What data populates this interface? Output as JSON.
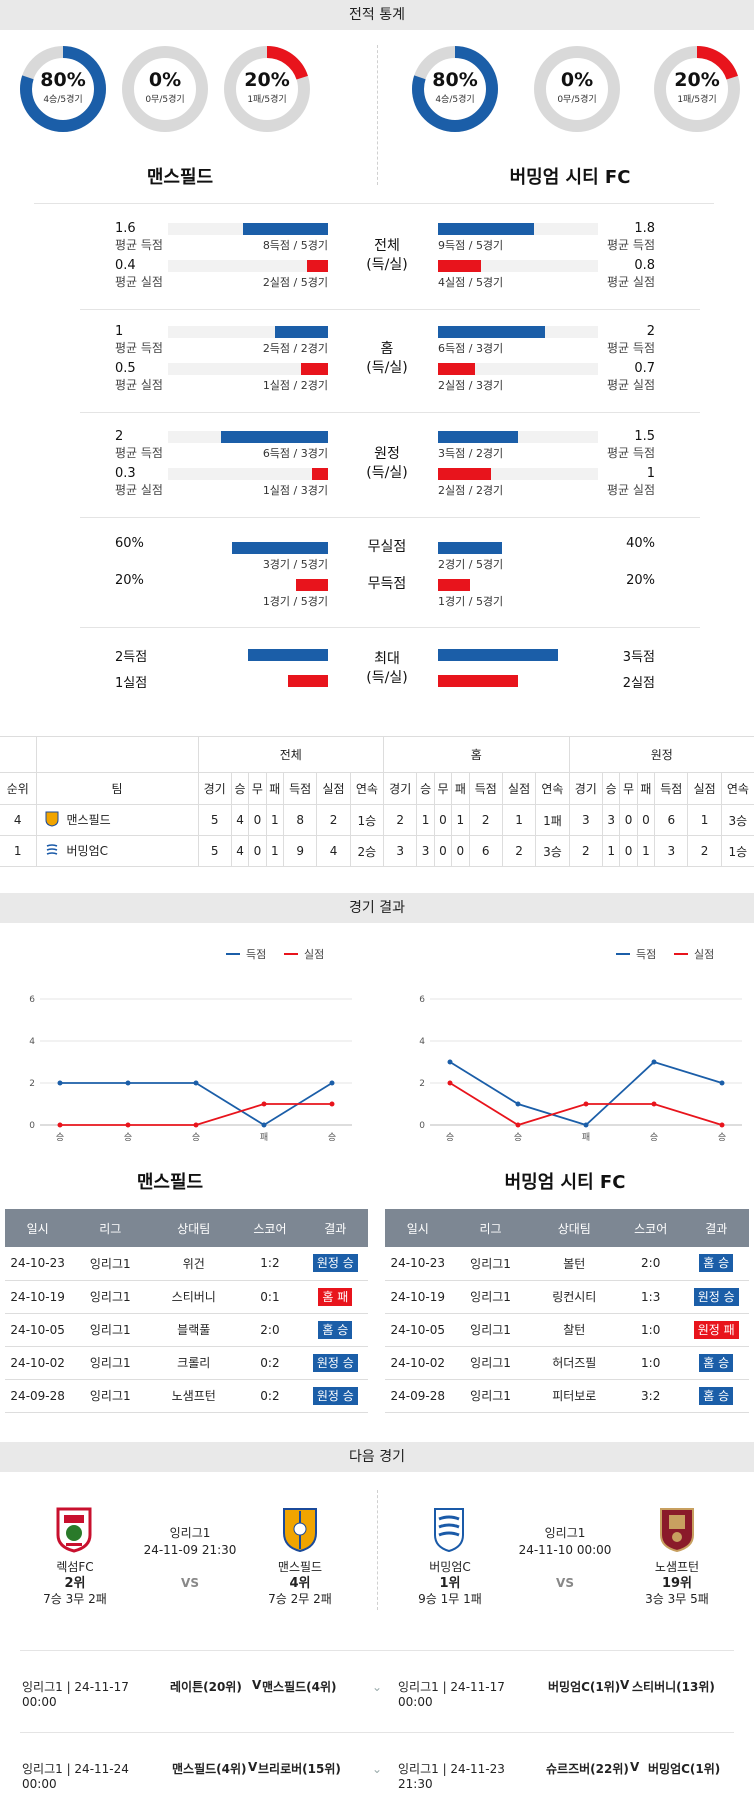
{
  "sec1": "전적 통계",
  "sec2": "경기 결과",
  "sec3": "다음 경기",
  "colors": {
    "blue": "#1b5ea8",
    "red": "#e8141c",
    "gray": "#d9d9d9"
  },
  "home": {
    "name": "맨스필드",
    "rings": [
      {
        "pct": "80%",
        "sub": "4승/5경기",
        "frac": 0.8,
        "color": "#1b5ea8"
      },
      {
        "pct": "0%",
        "sub": "0무/5경기",
        "frac": 0,
        "color": "#1b5ea8"
      },
      {
        "pct": "20%",
        "sub": "1패/5경기",
        "frac": 0.2,
        "color": "#e8141c"
      }
    ]
  },
  "away": {
    "name": "버밍엄 시티 FC",
    "rings": [
      {
        "pct": "80%",
        "sub": "4승/5경기",
        "frac": 0.8,
        "color": "#1b5ea8"
      },
      {
        "pct": "0%",
        "sub": "0무/5경기",
        "frac": 0,
        "color": "#1b5ea8"
      },
      {
        "pct": "20%",
        "sub": "1패/5경기",
        "frac": 0.2,
        "color": "#e8141c"
      }
    ]
  },
  "stats": [
    {
      "cat1": "전체",
      "cat2": "(득/실)",
      "hv1": "1.6",
      "hl1": "평균 득점",
      "hb1": "8득점 / 5경기",
      "hf1": 0.53,
      "hv2": "0.4",
      "hl2": "평균 실점",
      "hb2": "2실점 / 5경기",
      "hf2": 0.13,
      "av1": "1.8",
      "al1": "평균 득점",
      "ab1": "9득점 / 5경기",
      "af1": 0.6,
      "av2": "0.8",
      "al2": "평균 실점",
      "ab2": "4실점 / 5경기",
      "af2": 0.27
    },
    {
      "cat1": "홈",
      "cat2": "(득/실)",
      "hv1": "1",
      "hl1": "평균 득점",
      "hb1": "2득점 / 2경기",
      "hf1": 0.33,
      "hv2": "0.5",
      "hl2": "평균 실점",
      "hb2": "1실점 / 2경기",
      "hf2": 0.17,
      "av1": "2",
      "al1": "평균 득점",
      "ab1": "6득점 / 3경기",
      "af1": 0.67,
      "av2": "0.7",
      "al2": "평균 실점",
      "ab2": "2실점 / 3경기",
      "af2": 0.23
    },
    {
      "cat1": "원정",
      "cat2": "(득/실)",
      "hv1": "2",
      "hl1": "평균 득점",
      "hb1": "6득점 / 3경기",
      "hf1": 0.67,
      "hv2": "0.3",
      "hl2": "평균 실점",
      "hb2": "1실점 / 3경기",
      "hf2": 0.1,
      "av1": "1.5",
      "al1": "평균 득점",
      "ab1": "3득점 / 2경기",
      "af1": 0.5,
      "av2": "1",
      "al2": "평균 실점",
      "ab2": "2실점 / 2경기",
      "af2": 0.33
    }
  ],
  "clean": {
    "cat1": "무실점",
    "cat2": "무득점",
    "hv1": "60%",
    "hb1": "3경기 / 5경기",
    "hf1": 0.6,
    "hv2": "20%",
    "hb2": "1경기 / 5경기",
    "hf2": 0.2,
    "av1": "40%",
    "ab1": "2경기 / 5경기",
    "af1": 0.4,
    "av2": "20%",
    "ab2": "1경기 / 5경기",
    "af2": 0.2
  },
  "max": {
    "cat1": "최대",
    "cat2": "(득/실)",
    "hv1": "2득점",
    "hf1": 0.5,
    "hv2": "1실점",
    "hf2": 0.25,
    "av1": "3득점",
    "af1": 0.75,
    "av2": "2실점",
    "af2": 0.5
  },
  "standings": {
    "groups": [
      "전체",
      "홈",
      "원정"
    ],
    "headers": [
      "순위",
      "팀",
      "경기",
      "승",
      "무",
      "패",
      "득점",
      "실점",
      "연속",
      "경기",
      "승",
      "무",
      "패",
      "득점",
      "실점",
      "연속",
      "경기",
      "승",
      "무",
      "패",
      "득점",
      "실점",
      "연속"
    ],
    "rows": [
      [
        "4",
        "맨스필드",
        "5",
        "4",
        "0",
        "1",
        "8",
        "2",
        "1승",
        "2",
        "1",
        "0",
        "1",
        "2",
        "1",
        "1패",
        "3",
        "3",
        "0",
        "0",
        "6",
        "1",
        "3승"
      ],
      [
        "1",
        "버밍엄C",
        "5",
        "4",
        "0",
        "1",
        "9",
        "4",
        "2승",
        "3",
        "3",
        "0",
        "0",
        "6",
        "2",
        "3승",
        "2",
        "1",
        "0",
        "1",
        "3",
        "2",
        "1승"
      ]
    ]
  },
  "charts": {
    "legend_for": "득점",
    "legend_against": "실점",
    "home": {
      "y_ticks": [
        0,
        2,
        4,
        6
      ],
      "x": [
        "승",
        "승",
        "승",
        "패",
        "승"
      ],
      "for": [
        2,
        2,
        2,
        0,
        2
      ],
      "against": [
        0,
        0,
        0,
        1,
        1
      ]
    },
    "away": {
      "y_ticks": [
        0,
        2,
        4,
        6
      ],
      "x": [
        "승",
        "승",
        "패",
        "승",
        "승"
      ],
      "for": [
        3,
        1,
        0,
        3,
        2
      ],
      "against": [
        2,
        0,
        1,
        1,
        0
      ]
    }
  },
  "results_headers": [
    "일시",
    "리그",
    "상대팀",
    "스코어",
    "결과"
  ],
  "home_results": [
    {
      "date": "24-10-23",
      "league": "잉리그1",
      "opp": "위건",
      "score": "1:2",
      "res": "원정 승",
      "color": "#1b5ea8"
    },
    {
      "date": "24-10-19",
      "league": "잉리그1",
      "opp": "스티버니",
      "score": "0:1",
      "res": "홈 패",
      "color": "#e8141c"
    },
    {
      "date": "24-10-05",
      "league": "잉리그1",
      "opp": "블랙풀",
      "score": "2:0",
      "res": "홈 승",
      "color": "#1b5ea8"
    },
    {
      "date": "24-10-02",
      "league": "잉리그1",
      "opp": "크롤리",
      "score": "0:2",
      "res": "원정 승",
      "color": "#1b5ea8"
    },
    {
      "date": "24-09-28",
      "league": "잉리그1",
      "opp": "노샘프턴",
      "score": "0:2",
      "res": "원정 승",
      "color": "#1b5ea8"
    }
  ],
  "away_results": [
    {
      "date": "24-10-23",
      "league": "잉리그1",
      "opp": "볼턴",
      "score": "2:0",
      "res": "홈 승",
      "color": "#1b5ea8"
    },
    {
      "date": "24-10-19",
      "league": "잉리그1",
      "opp": "링컨시티",
      "score": "1:3",
      "res": "원정 승",
      "color": "#1b5ea8"
    },
    {
      "date": "24-10-05",
      "league": "잉리그1",
      "opp": "찰턴",
      "score": "1:0",
      "res": "원정 패",
      "color": "#e8141c"
    },
    {
      "date": "24-10-02",
      "league": "잉리그1",
      "opp": "허더즈필",
      "score": "1:0",
      "res": "홈 승",
      "color": "#1b5ea8"
    },
    {
      "date": "24-09-28",
      "league": "잉리그1",
      "opp": "피터보로",
      "score": "3:2",
      "res": "홈 승",
      "color": "#1b5ea8"
    }
  ],
  "next": {
    "home": {
      "league": "잉리그1",
      "datetime": "24-11-09 21:30",
      "vs": "VS",
      "t1": {
        "name": "렉섬FC",
        "rank": "2위",
        "rec": "7승 3무 2패"
      },
      "t2": {
        "name": "맨스필드",
        "rank": "4위",
        "rec": "7승 2무 2패"
      }
    },
    "away": {
      "league": "잉리그1",
      "datetime": "24-11-10 00:00",
      "vs": "VS",
      "t1": {
        "name": "버밍엄C",
        "rank": "1위",
        "rec": "9승 1무 1패"
      },
      "t2": {
        "name": "노샘프턴",
        "rank": "19위",
        "rec": "3승 3무 5패"
      }
    }
  },
  "upcoming": [
    {
      "hinfo": "잉리그1 | 24-11-17 00:00",
      "hm": "레이튼(20위)",
      "hv": "V",
      "ha": "맨스필드(4위)",
      "ainfo": "잉리그1 | 24-11-17 00:00",
      "am": "버밍엄C(1위)",
      "av": "V",
      "aa": "스티버니(13위)"
    },
    {
      "hinfo": "잉리그1 | 24-11-24 00:00",
      "hm": "맨스필드(4위)",
      "hv": "V",
      "ha": "브리로버(15위)",
      "ainfo": "잉리그1 | 24-11-23 21:30",
      "am": "슈르즈버(22위)",
      "av": "V",
      "aa": "버밍엄C(1위)"
    }
  ]
}
